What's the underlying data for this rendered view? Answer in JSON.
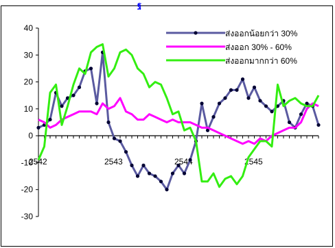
{
  "chart_data": {
    "type": "line",
    "title": "",
    "title_fragment": "ฐ",
    "xlabel": "",
    "ylabel": "",
    "ylim": [
      -30,
      40
    ],
    "yticks": [
      40,
      30,
      20,
      10,
      0,
      -10,
      -20,
      -30
    ],
    "ytick_labels": [
      "40",
      "30",
      "20",
      "10",
      "0",
      "-10",
      "-20",
      "-30"
    ],
    "xtick_labels": [
      "2542",
      "2543",
      "2544",
      "2545"
    ],
    "grid": false,
    "legend_placement": "top-right",
    "series": [
      {
        "name": "ส่งออกน้อยกว่า 30%",
        "color": "#5a5aa0",
        "marker": "dot",
        "values": [
          3,
          4,
          6,
          16,
          11,
          14,
          15,
          18,
          24,
          25,
          12,
          31,
          5,
          -1,
          -2,
          -6,
          -11,
          -15,
          -11,
          -14,
          -15,
          -17,
          -20,
          -14,
          -11,
          -14,
          -9,
          -2,
          12,
          2,
          7,
          12,
          14,
          17,
          17,
          21,
          14,
          18,
          13,
          11,
          9,
          11,
          13,
          5,
          3,
          8,
          12,
          11,
          4
        ]
      },
      {
        "name": "ส่งออก 30% - 60%",
        "color": "#ff00ff",
        "marker": "none",
        "values": [
          6,
          5,
          3,
          4,
          6,
          7,
          8,
          9,
          9,
          9,
          8,
          12,
          10,
          11,
          14,
          9,
          8,
          6,
          6,
          8,
          7,
          6,
          5,
          6,
          5,
          5,
          5,
          4,
          3,
          3,
          2,
          1,
          0,
          -1,
          -2,
          -3,
          -2,
          -3,
          -1,
          -2,
          0,
          1,
          2,
          3,
          3,
          5,
          10,
          12,
          11
        ]
      },
      {
        "name": "ส่งออกมากกว่า 60%",
        "color": "#33ee11",
        "marker": "none",
        "values": [
          -9,
          -4,
          16,
          19,
          4,
          11,
          19,
          25,
          23,
          31,
          33,
          34,
          22,
          25,
          31,
          32,
          30,
          25,
          23,
          18,
          20,
          19,
          14,
          8,
          9,
          2,
          3,
          -2,
          -17,
          -17,
          -14,
          -19,
          -16,
          -15,
          -18,
          -15,
          -8,
          -5,
          -2,
          -2,
          -4,
          19,
          11,
          13,
          14,
          12,
          11,
          11,
          15
        ]
      }
    ]
  }
}
